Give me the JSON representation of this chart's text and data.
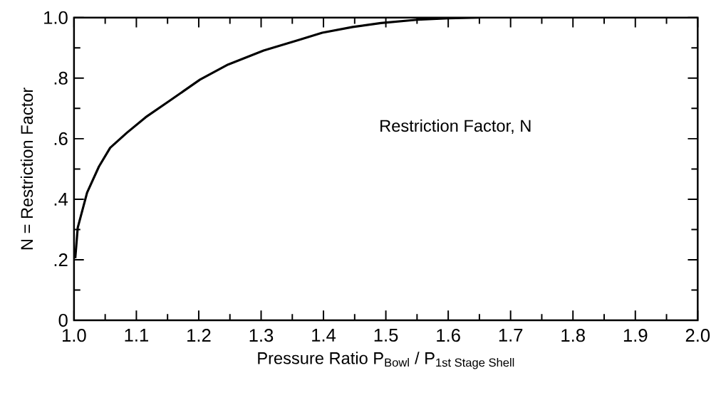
{
  "chart_data": {
    "type": "line",
    "xlabel": "Pressure Ratio P$_{Bowl}$ / P$_{1st Stage Shell}$",
    "ylabel": "N = Restriction Factor",
    "annotations": [
      "Restriction Factor, N"
    ],
    "x": [
      1.002,
      1.006,
      1.021,
      1.04,
      1.058,
      1.085,
      1.115,
      1.153,
      1.202,
      1.247,
      1.304,
      1.36,
      1.398,
      1.447,
      1.492,
      1.55,
      1.6,
      1.65
    ],
    "series": [
      {
        "color": "#000000",
        "values": [
          0.205,
          0.306,
          0.422,
          0.508,
          0.57,
          0.62,
          0.671,
          0.725,
          0.795,
          0.845,
          0.891,
          0.926,
          0.95,
          0.969,
          0.982,
          0.993,
          0.998,
          1.0
        ]
      }
    ],
    "xlim": [
      1.0,
      2.0
    ],
    "ylim": [
      0,
      1.0
    ],
    "xticks": [
      {
        "value": 1.0,
        "label": "1.0"
      },
      1.1,
      1.2,
      1.3,
      1.4,
      1.5,
      1.6,
      1.7,
      1.8,
      1.9,
      {
        "value": 2.0,
        "label": "2.0"
      }
    ],
    "yticks": [
      0,
      {
        "value": 0.2,
        "label": ".2"
      },
      {
        "value": 0.4,
        "label": ".4"
      },
      {
        "value": 0.6,
        "label": ".6"
      },
      {
        "value": 0.8,
        "label": ".8"
      },
      {
        "value": 1.0,
        "label": "1.0"
      }
    ],
    "grid": false,
    "marker": "none",
    "line_style": "solid"
  }
}
